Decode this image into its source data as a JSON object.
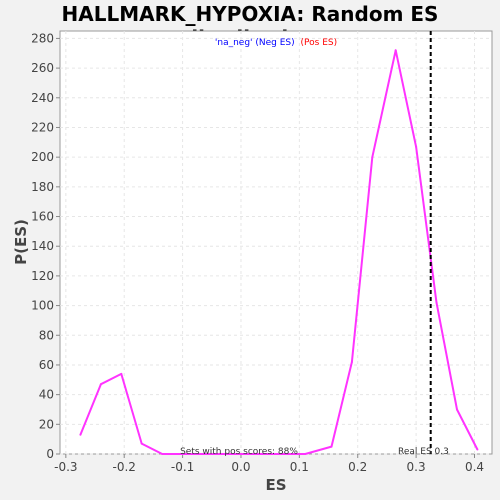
{
  "chart_data": {
    "type": "line",
    "title": "HALLMARK_HYPOXIA: Random ES distribution",
    "xlabel": "ES",
    "ylabel": "P(ES)",
    "xlim": [
      -0.31,
      0.43
    ],
    "ylim": [
      0,
      285
    ],
    "x_ticks": [
      -0.3,
      -0.2,
      -0.1,
      0.0,
      0.1,
      0.2,
      0.3,
      0.4
    ],
    "x_tick_labels": [
      "-0.3",
      "-0.2",
      "-0.1",
      "0.0",
      "0.1",
      "0.2",
      "0.3",
      "0.4"
    ],
    "y_ticks": [
      0,
      20,
      40,
      60,
      80,
      100,
      120,
      140,
      160,
      180,
      200,
      220,
      240,
      260,
      280
    ],
    "y_tick_labels": [
      "0",
      "20",
      "40",
      "60",
      "80",
      "100",
      "120",
      "140",
      "160",
      "180",
      "200",
      "220",
      "240",
      "260",
      "280"
    ],
    "grid": true,
    "legend": {
      "neg_text": "'na_neg' (Neg ES)",
      "pos_text": "(Pos ES)",
      "neg_color": "#0000ff",
      "pos_color": "#ff0000",
      "placement": "top-center"
    },
    "series": [
      {
        "color": "#ff33ff",
        "x": [
          -0.275,
          -0.24,
          -0.205,
          -0.17,
          -0.135,
          -0.1,
          -0.065,
          -0.03,
          0.005,
          0.04,
          0.075,
          0.11,
          0.155,
          0.19,
          0.225,
          0.265,
          0.3,
          0.335,
          0.37,
          0.405
        ],
        "y": [
          13,
          47,
          54,
          7,
          0,
          0,
          0,
          0,
          0,
          0,
          0,
          0,
          5,
          62,
          200,
          272,
          207,
          102,
          30,
          3
        ]
      }
    ],
    "real_es": {
      "value": 0.325,
      "label": "Real ES 0.3",
      "style": "dashed",
      "color": "#000000"
    },
    "annotation": "Sets with pos scores: 88%"
  }
}
